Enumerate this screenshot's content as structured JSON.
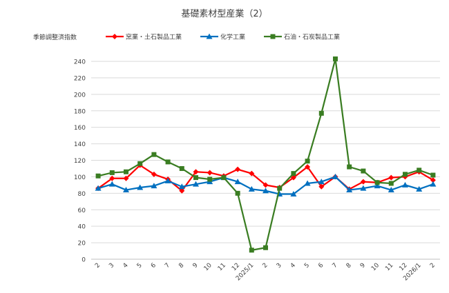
{
  "chart_data": {
    "type": "line",
    "title": "基礎素材型産業（2）",
    "ylabel": "季節調整済指数",
    "xlabel": "",
    "ylim": [
      0,
      240
    ],
    "yticks": [
      0,
      20,
      40,
      60,
      80,
      100,
      120,
      140,
      160,
      180,
      200,
      220,
      240
    ],
    "grid": true,
    "legend_position": "top",
    "categories": [
      "2",
      "3",
      "4",
      "5",
      "6",
      "7",
      "8",
      "9",
      "10",
      "11",
      "12",
      "2025/1",
      "2",
      "3",
      "4",
      "5",
      "6",
      "7",
      "8",
      "9",
      "10",
      "11",
      "12",
      "2026/1",
      "2"
    ],
    "series": [
      {
        "name": "窯業・土石製品工業",
        "color": "#ff0000",
        "marker": "diamond",
        "values": [
          86,
          98,
          98,
          114,
          103,
          97,
          83,
          106,
          105,
          101,
          109,
          104,
          90,
          87,
          99,
          112,
          88,
          100,
          85,
          94,
          93,
          99,
          100,
          106,
          96
        ]
      },
      {
        "name": "化学工業",
        "color": "#0070c0",
        "marker": "triangle",
        "values": [
          86,
          91,
          84,
          87,
          89,
          95,
          88,
          91,
          94,
          99,
          94,
          85,
          83,
          79,
          79,
          92,
          94,
          100,
          84,
          86,
          89,
          84,
          90,
          85,
          91
        ]
      },
      {
        "name": "石油・石炭製品工業",
        "color": "#3a7d22",
        "marker": "square",
        "values": [
          101,
          105,
          106,
          116,
          127,
          118,
          110,
          99,
          97,
          99,
          80,
          11,
          14,
          86,
          104,
          119,
          177,
          243,
          112,
          107,
          93,
          92,
          103,
          108,
          102
        ]
      }
    ]
  }
}
